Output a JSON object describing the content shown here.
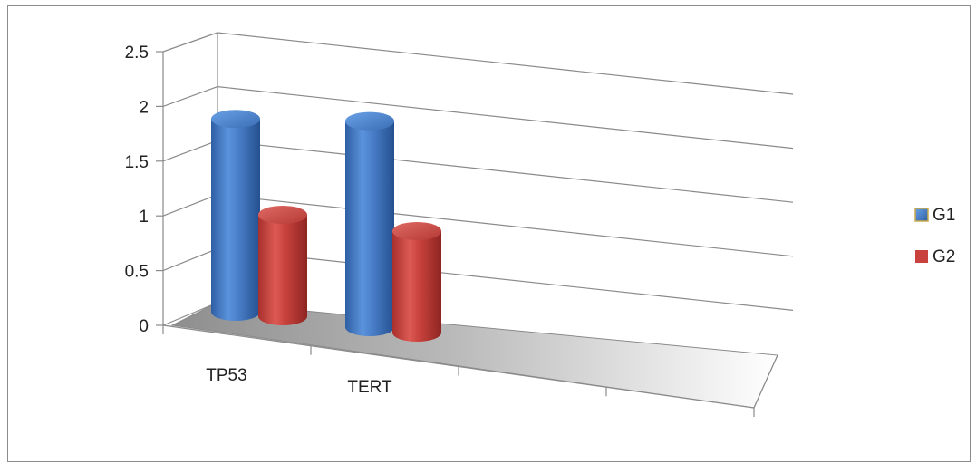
{
  "chart_data": {
    "type": "bar",
    "style": "3d-cylinder",
    "categories": [
      "TP53",
      "TERT"
    ],
    "series": [
      {
        "name": "G1",
        "values": [
          1.9,
          2.03
        ],
        "color": "#4a7fc9"
      },
      {
        "name": "G2",
        "values": [
          1.0,
          1.0
        ],
        "color": "#c9423d"
      }
    ],
    "yticks": [
      "0",
      "0.5",
      "1",
      "1.5",
      "2",
      "2.5"
    ],
    "ylim": [
      0,
      2.5
    ],
    "grid": true,
    "legend_position": "right"
  }
}
